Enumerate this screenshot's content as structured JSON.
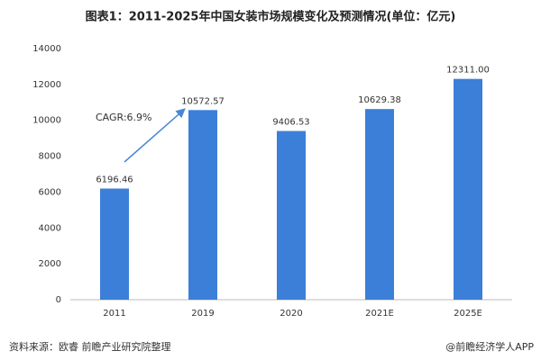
{
  "chart_data": {
    "type": "bar",
    "title": "图表1：2011-2025年中国女装市场规模变化及预测情况(单位：亿元)",
    "categories": [
      "2011",
      "2019",
      "2020",
      "2021E",
      "2025E"
    ],
    "values": [
      6196.46,
      10572.57,
      9406.53,
      10629.38,
      12311
    ],
    "value_labels": [
      "6196.46",
      "10572.57",
      "9406.53",
      "10629.38",
      "12311.00"
    ],
    "color": "#3b7fd9",
    "ylim": [
      0,
      14000
    ],
    "yticks": [
      0,
      2000,
      4000,
      6000,
      8000,
      10000,
      12000,
      14000
    ],
    "annotation": "CAGR:6.9%",
    "source": "资料来源：欧睿 前瞻产业研究院整理",
    "credit": "@前瞻经济学人APP"
  }
}
